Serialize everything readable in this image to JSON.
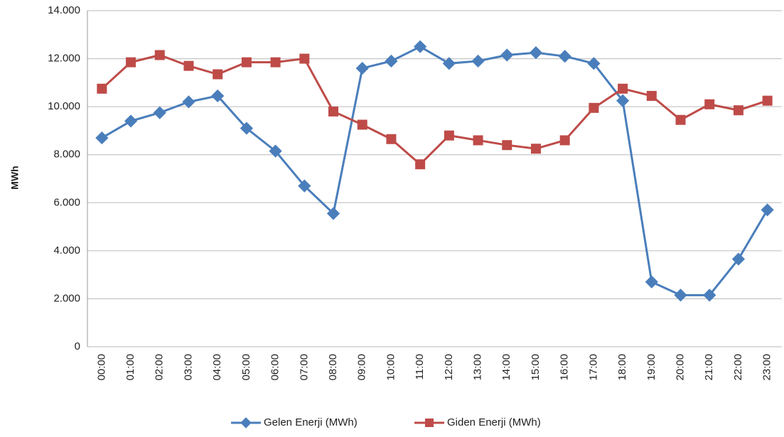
{
  "chart_data": {
    "type": "line",
    "y_label": "MWh",
    "categories": [
      "00:00",
      "01:00",
      "02:00",
      "03:00",
      "04:00",
      "05:00",
      "06:00",
      "07:00",
      "08:00",
      "09:00",
      "10:00",
      "11:00",
      "12:00",
      "13:00",
      "14:00",
      "15:00",
      "16:00",
      "17:00",
      "18:00",
      "19:00",
      "20:00",
      "21:00",
      "22:00",
      "23:00"
    ],
    "series": [
      {
        "name": "Gelen Enerji (MWh)",
        "color": "#4a7ebb",
        "marker": "diamond",
        "values": [
          8700,
          9400,
          9750,
          10200,
          10450,
          9100,
          8150,
          6700,
          5550,
          11600,
          11900,
          12500,
          11800,
          11900,
          12150,
          12250,
          12100,
          11800,
          10250,
          2700,
          2150,
          2150,
          3650,
          5700
        ]
      },
      {
        "name": "Giden Enerji (MWh)",
        "color": "#be4b48",
        "marker": "square",
        "values": [
          10750,
          11850,
          12150,
          11700,
          11350,
          11850,
          11850,
          12000,
          9800,
          9250,
          8650,
          7600,
          8800,
          8600,
          8400,
          8250,
          8600,
          9950,
          10750,
          10450,
          9450,
          10100,
          9850,
          10250
        ]
      }
    ],
    "ylim": [
      0,
      14000
    ],
    "yticks": [
      0,
      {
        "value": 2000,
        "label": "2.000"
      },
      {
        "value": 4000,
        "label": "4.000"
      },
      {
        "value": 6000,
        "label": "6.000"
      },
      {
        "value": 8000,
        "label": "8.000"
      },
      {
        "value": 10000,
        "label": "10.000"
      },
      {
        "value": 12000,
        "label": "12.000"
      },
      {
        "value": 14000,
        "label": "14.000"
      }
    ],
    "grid": true,
    "legend": "bottom"
  }
}
